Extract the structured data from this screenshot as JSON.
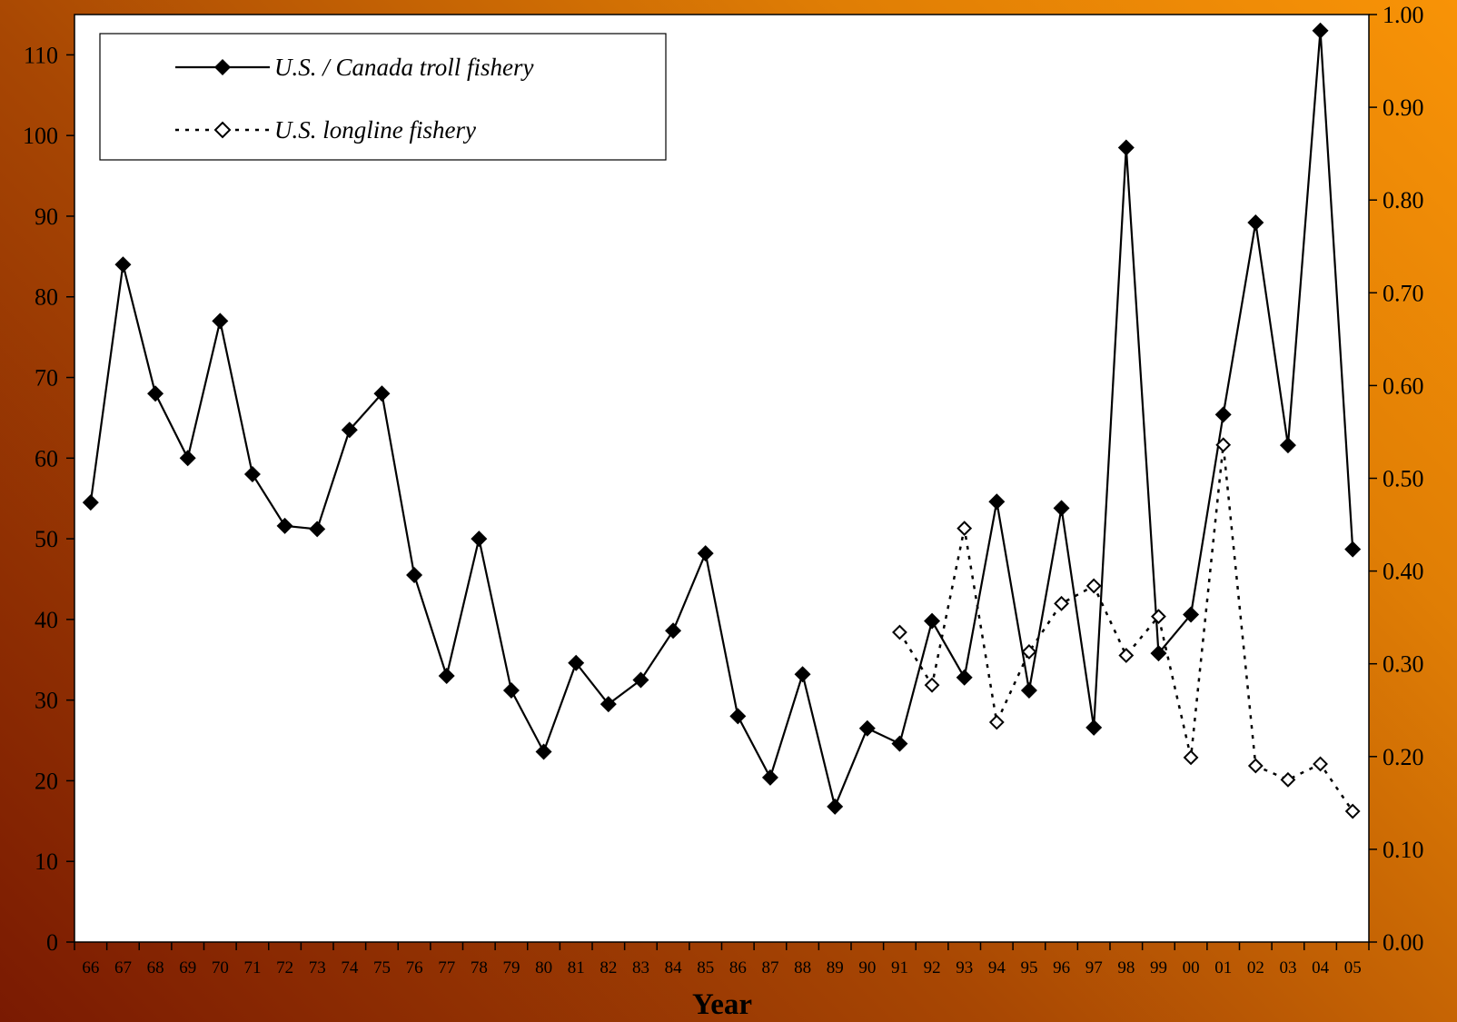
{
  "chart_data": {
    "type": "line",
    "xlabel": "Year",
    "ylabel": "",
    "ylabel_right": "",
    "ylim": [
      0,
      115
    ],
    "ylim_right": [
      0,
      1.0
    ],
    "yticks": [
      "0",
      "10",
      "20",
      "30",
      "40",
      "50",
      "60",
      "70",
      "80",
      "90",
      "100",
      "110"
    ],
    "yticks_right": [
      "0.00",
      "0.10",
      "0.20",
      "0.30",
      "0.40",
      "0.50",
      "0.60",
      "0.70",
      "0.80",
      "0.90",
      "1.00"
    ],
    "categories": [
      "66",
      "67",
      "68",
      "69",
      "70",
      "71",
      "72",
      "73",
      "74",
      "75",
      "76",
      "77",
      "78",
      "79",
      "80",
      "81",
      "82",
      "83",
      "84",
      "85",
      "86",
      "87",
      "88",
      "89",
      "90",
      "91",
      "92",
      "93",
      "94",
      "95",
      "96",
      "97",
      "98",
      "99",
      "00",
      "01",
      "02",
      "03",
      "04",
      "05"
    ],
    "legend_position": "top-left",
    "grid": false,
    "series": [
      {
        "name": "U.S. / Canada troll fishery",
        "axis": "left",
        "style": "solid",
        "marker": "filled-diamond",
        "color": "#000000",
        "values": [
          54.5,
          84.0,
          68.0,
          60.0,
          77.0,
          58.0,
          51.6,
          51.2,
          63.5,
          68.0,
          45.5,
          33.0,
          50.0,
          31.2,
          23.6,
          34.6,
          29.5,
          32.5,
          38.6,
          48.2,
          28.0,
          20.4,
          33.2,
          16.8,
          26.5,
          24.6,
          39.8,
          32.8,
          54.6,
          31.2,
          53.8,
          26.6,
          98.5,
          35.8,
          40.6,
          65.4,
          89.2,
          61.6,
          113.0,
          48.7
        ]
      },
      {
        "name": "U.S. longline fishery",
        "axis": "right",
        "style": "dotted",
        "marker": "open-diamond",
        "color": "#000000",
        "values": [
          null,
          null,
          null,
          null,
          null,
          null,
          null,
          null,
          null,
          null,
          null,
          null,
          null,
          null,
          null,
          null,
          null,
          null,
          null,
          null,
          null,
          null,
          null,
          null,
          null,
          0.334,
          0.277,
          0.446,
          0.237,
          0.313,
          0.365,
          0.384,
          0.309,
          0.351,
          0.199,
          0.536,
          0.19,
          0.175,
          0.192,
          0.141
        ]
      }
    ]
  }
}
